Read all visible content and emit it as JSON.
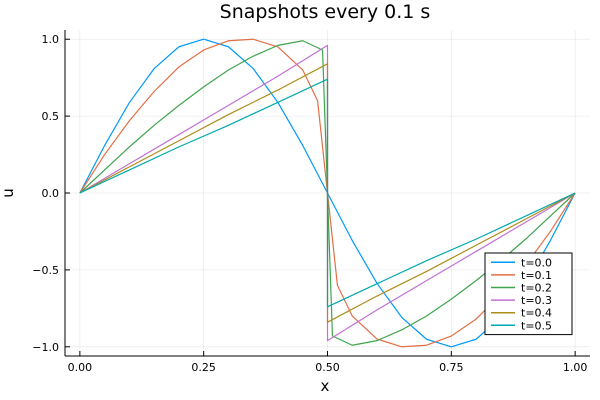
{
  "chart_data": {
    "type": "line",
    "title": "Snapshots every 0.1 s",
    "xlabel": "x",
    "ylabel": "u",
    "xlim": [
      -0.03,
      1.03
    ],
    "ylim": [
      -1.06,
      1.06
    ],
    "xticks": [
      0.0,
      0.25,
      0.5,
      0.75,
      1.0
    ],
    "xtick_labels": [
      "0.00",
      "0.25",
      "0.50",
      "0.75",
      "1.00"
    ],
    "yticks": [
      -1.0,
      -0.5,
      0.0,
      0.5,
      1.0
    ],
    "ytick_labels": [
      "−1.0",
      "−0.5",
      "0.0",
      "0.5",
      "1.0"
    ],
    "grid": true,
    "legend_position": "bottom-right",
    "series": [
      {
        "name": "t=0.0",
        "color": "#009AFA",
        "x": [
          0.0,
          0.05,
          0.1,
          0.15,
          0.2,
          0.25,
          0.3,
          0.35,
          0.4,
          0.45,
          0.5,
          0.55,
          0.6,
          0.65,
          0.7,
          0.75,
          0.8,
          0.85,
          0.9,
          0.95,
          1.0
        ],
        "y": [
          0.0,
          0.309,
          0.588,
          0.809,
          0.951,
          1.0,
          0.951,
          0.809,
          0.588,
          0.309,
          0.0,
          -0.309,
          -0.588,
          -0.809,
          -0.951,
          -1.0,
          -0.951,
          -0.809,
          -0.588,
          -0.309,
          0.0
        ]
      },
      {
        "name": "t=0.1",
        "color": "#E36F47",
        "x": [
          0.0,
          0.05,
          0.1,
          0.15,
          0.2,
          0.25,
          0.3,
          0.35,
          0.4,
          0.45,
          0.48,
          0.5,
          0.52,
          0.55,
          0.6,
          0.65,
          0.7,
          0.75,
          0.8,
          0.85,
          0.9,
          0.95,
          1.0
        ],
        "y": [
          0.0,
          0.25,
          0.47,
          0.66,
          0.82,
          0.93,
          0.99,
          1.0,
          0.95,
          0.8,
          0.6,
          0.0,
          -0.6,
          -0.8,
          -0.95,
          -1.0,
          -0.99,
          -0.93,
          -0.82,
          -0.66,
          -0.47,
          -0.25,
          0.0
        ]
      },
      {
        "name": "t=0.2",
        "color": "#3EA44E",
        "x": [
          0.0,
          0.05,
          0.1,
          0.15,
          0.2,
          0.25,
          0.3,
          0.35,
          0.4,
          0.45,
          0.49,
          0.5,
          0.51,
          0.55,
          0.6,
          0.65,
          0.7,
          0.75,
          0.8,
          0.85,
          0.9,
          0.95,
          1.0
        ],
        "y": [
          0.0,
          0.15,
          0.3,
          0.44,
          0.57,
          0.69,
          0.8,
          0.89,
          0.96,
          0.99,
          0.93,
          0.0,
          -0.93,
          -0.99,
          -0.96,
          -0.89,
          -0.8,
          -0.69,
          -0.57,
          -0.44,
          -0.3,
          -0.15,
          0.0
        ]
      },
      {
        "name": "t=0.3",
        "color": "#C271D2",
        "x": [
          0.0,
          0.1,
          0.2,
          0.3,
          0.4,
          0.5,
          0.5,
          0.6,
          0.7,
          0.8,
          0.9,
          1.0
        ],
        "y": [
          0.0,
          0.19,
          0.38,
          0.57,
          0.76,
          0.96,
          -0.96,
          -0.76,
          -0.57,
          -0.38,
          -0.19,
          0.0
        ]
      },
      {
        "name": "t=0.4",
        "color": "#AC8D18",
        "x": [
          0.0,
          0.1,
          0.2,
          0.3,
          0.4,
          0.5,
          0.5,
          0.6,
          0.7,
          0.8,
          0.9,
          1.0
        ],
        "y": [
          0.0,
          0.17,
          0.34,
          0.51,
          0.67,
          0.84,
          -0.84,
          -0.67,
          -0.51,
          -0.34,
          -0.17,
          0.0
        ]
      },
      {
        "name": "t=0.5",
        "color": "#00A9AD",
        "x": [
          0.0,
          0.1,
          0.2,
          0.3,
          0.4,
          0.5,
          0.5,
          0.6,
          0.7,
          0.8,
          0.9,
          1.0
        ],
        "y": [
          0.0,
          0.15,
          0.3,
          0.44,
          0.59,
          0.74,
          -0.74,
          -0.59,
          -0.44,
          -0.3,
          -0.15,
          0.0
        ]
      }
    ]
  }
}
